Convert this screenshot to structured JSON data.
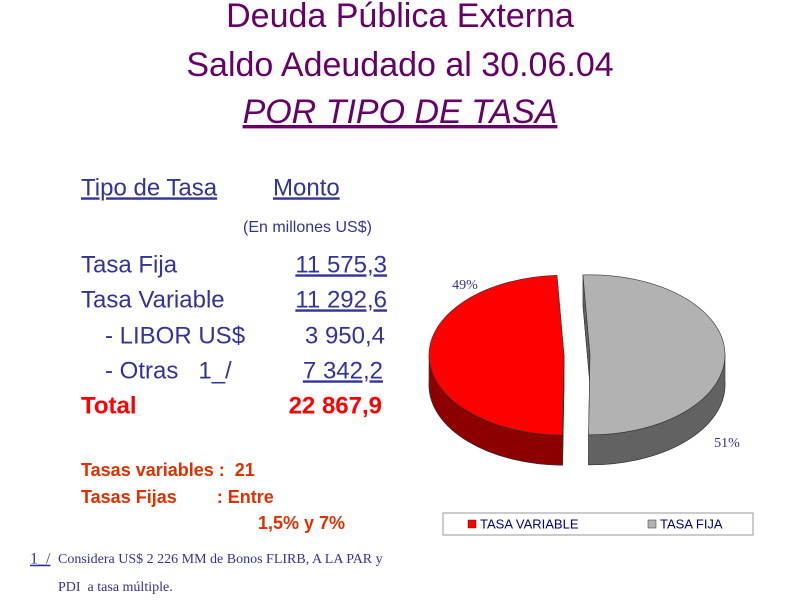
{
  "title": {
    "line1": "Deuda Pública Externa",
    "line2": "Saldo Adeudado al 30.06.04",
    "line3": "POR TIPO DE TASA"
  },
  "table": {
    "headers": [
      "Tipo de Tasa",
      "Monto"
    ],
    "unit_note": "(En millones US$)",
    "rows": [
      [
        "Tasa Fija",
        "11 575,3"
      ],
      [
        "Tasa Variable",
        "11 292,6"
      ],
      [
        "- LIBOR US$",
        "3 950,4"
      ],
      [
        "- Otras   1_/",
        "7 342,2"
      ],
      [
        "Total",
        "22 867,9"
      ]
    ]
  },
  "notes": [
    "Tasas variables :  21",
    "Tasas Fijas        : Entre",
    "1,5% y 7%"
  ],
  "footnote": {
    "marker": "1_/",
    "line1": "Considera US$ 2 226 MM de Bonos FLIRB, A LA PAR y",
    "line2": "PDI  a tasa múltiple."
  },
  "chart_data": {
    "type": "pie",
    "categories": [
      "TASA VARIABLE",
      "TASA FIJA"
    ],
    "values": [
      49,
      51
    ],
    "value_labels": [
      "49%",
      "51%"
    ],
    "colors": [
      "#ff0000",
      "#b2b2b2"
    ],
    "legend": "bottom"
  }
}
